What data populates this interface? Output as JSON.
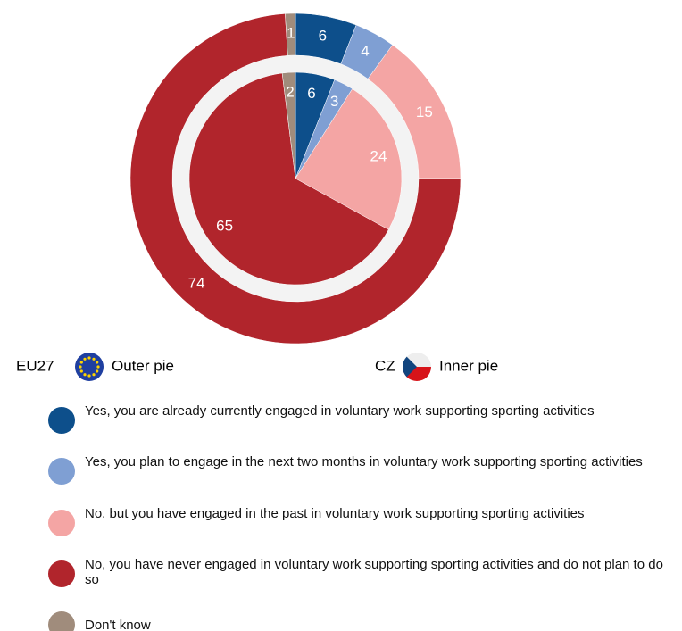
{
  "chart_data": {
    "type": "nested-pie",
    "categories": [
      "Yes, you are already currently engaged in voluntary work supporting sporting activities",
      "Yes, you plan to engage in the next two months in voluntary work supporting sporting activities",
      "No, but you have engaged in the past in voluntary work supporting sporting activities",
      "No, you have never engaged in voluntary work supporting sporting activities and do not plan to do so",
      "Don't know"
    ],
    "colors": [
      "#0d4f8b",
      "#7f9fd3",
      "#f4a5a4",
      "#b1252c",
      "#a08c7c"
    ],
    "series": [
      {
        "name": "EU27",
        "ring_label": "Outer pie",
        "values": [
          6,
          4,
          15,
          74,
          1
        ]
      },
      {
        "name": "CZ",
        "ring_label": "Inner pie",
        "values": [
          6,
          3,
          24,
          65,
          2
        ]
      }
    ]
  }
}
